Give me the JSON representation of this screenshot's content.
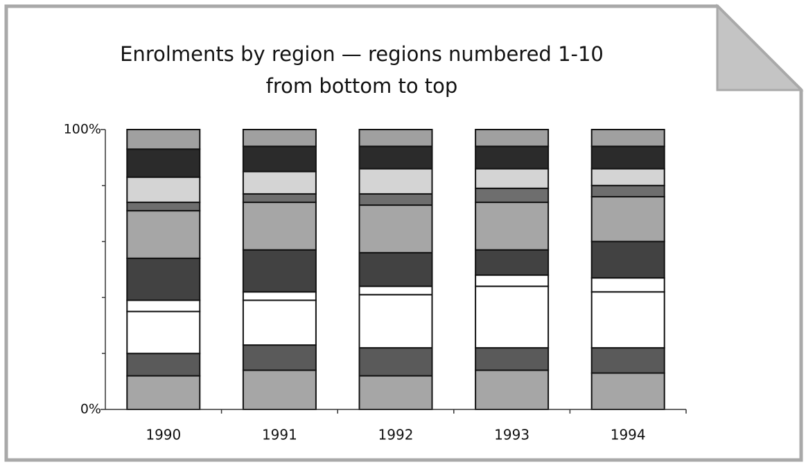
{
  "chart_data": {
    "type": "bar",
    "stacked": true,
    "title": [
      "Enrolments by region — regions numbered 1-10",
      "from bottom to top"
    ],
    "categories": [
      "1990",
      "1991",
      "1992",
      "1993",
      "1994"
    ],
    "series": [
      {
        "color": "#a6a6a6",
        "values": [
          12,
          14,
          12,
          14,
          13
        ]
      },
      {
        "color": "#5a5a5a",
        "values": [
          8,
          9,
          10,
          8,
          9
        ]
      },
      {
        "color": "#ffffff",
        "values": [
          15,
          16,
          19,
          22,
          20
        ]
      },
      {
        "color": "#ffffff",
        "values": [
          4,
          3,
          3,
          4,
          5
        ]
      },
      {
        "color": "#424242",
        "values": [
          15,
          15,
          12,
          9,
          13
        ]
      },
      {
        "color": "#a6a6a6",
        "values": [
          17,
          17,
          17,
          17,
          16
        ]
      },
      {
        "color": "#6e6e6e",
        "values": [
          3,
          3,
          4,
          5,
          4
        ]
      },
      {
        "color": "#d4d4d4",
        "values": [
          9,
          8,
          9,
          7,
          6
        ]
      },
      {
        "color": "#2b2b2b",
        "values": [
          10,
          9,
          8,
          8,
          8
        ]
      },
      {
        "color": "#a0a0a0",
        "values": [
          7,
          6,
          6,
          6,
          6
        ]
      }
    ],
    "ylim": [
      0,
      100
    ],
    "yticks": [
      {
        "value": 0,
        "label": "0%"
      },
      {
        "value": 100,
        "label": "100%"
      }
    ],
    "minor_yticks": [
      20,
      40,
      60,
      80
    ]
  }
}
